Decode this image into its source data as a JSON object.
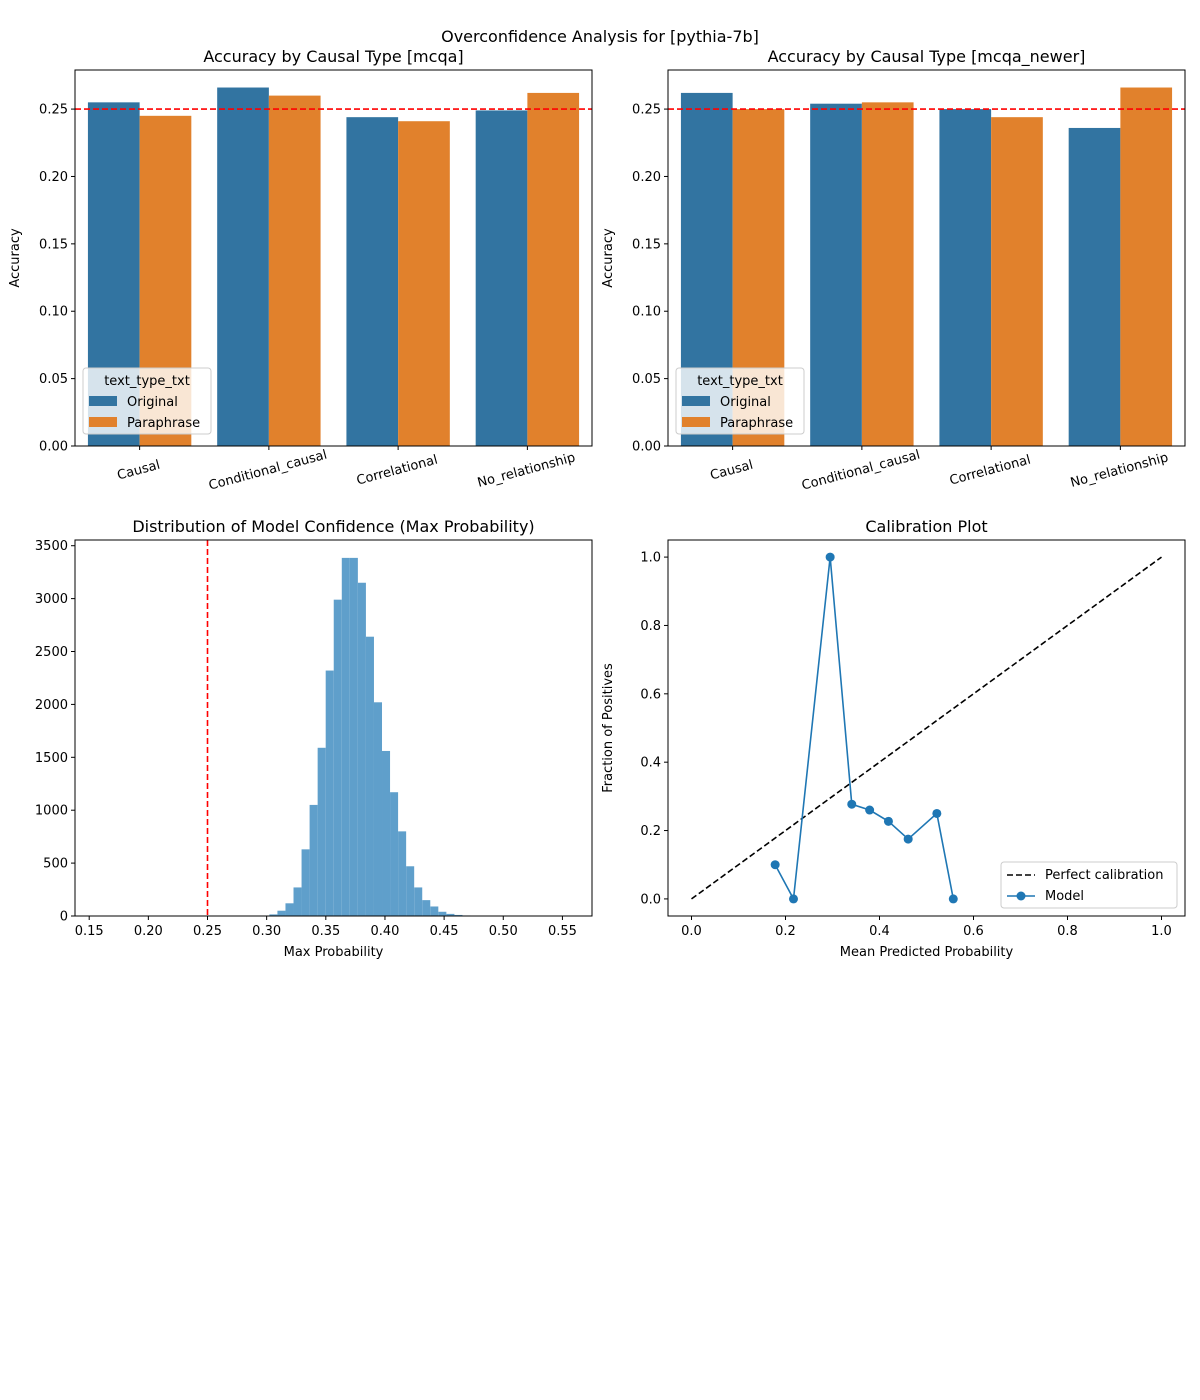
{
  "suptitle": "Overconfidence Analysis for [pythia-7b]",
  "colors": {
    "original": "#3274a1",
    "paraphrase": "#e1812c",
    "hist": "#5f9fcb",
    "ref_line": "#ff0000",
    "model_line": "#1f77b4",
    "perfect_line": "#000000"
  },
  "chart_data": [
    {
      "id": "mcqa",
      "type": "bar",
      "title": "Accuracy by Causal Type [mcqa]",
      "xlabel": "",
      "ylabel": "Accuracy",
      "categories": [
        "Causal",
        "Conditional_causal",
        "Correlational",
        "No_relationship"
      ],
      "series": [
        {
          "name": "Original",
          "values": [
            0.255,
            0.266,
            0.244,
            0.249
          ]
        },
        {
          "name": "Paraphrase",
          "values": [
            0.245,
            0.26,
            0.241,
            0.262
          ]
        }
      ],
      "ylim": [
        0,
        0.279
      ],
      "yticks": [
        "0.00",
        "0.05",
        "0.10",
        "0.15",
        "0.20",
        "0.25"
      ],
      "ref_line": 0.25,
      "legend_title": "text_type_txt",
      "legend_loc": "lower-left"
    },
    {
      "id": "mcqa_newer",
      "type": "bar",
      "title": "Accuracy by Causal Type [mcqa_newer]",
      "xlabel": "",
      "ylabel": "Accuracy",
      "categories": [
        "Causal",
        "Conditional_causal",
        "Correlational",
        "No_relationship"
      ],
      "series": [
        {
          "name": "Original",
          "values": [
            0.262,
            0.254,
            0.25,
            0.236
          ]
        },
        {
          "name": "Paraphrase",
          "values": [
            0.25,
            0.255,
            0.244,
            0.266
          ]
        }
      ],
      "ylim": [
        0,
        0.279
      ],
      "yticks": [
        "0.00",
        "0.05",
        "0.10",
        "0.15",
        "0.20",
        "0.25"
      ],
      "ref_line": 0.25,
      "legend_title": "text_type_txt",
      "legend_loc": "lower-left"
    },
    {
      "id": "confidence_hist",
      "type": "histogram",
      "title": "Distribution of Model Confidence (Max Probability)",
      "xlabel": "Max Probability",
      "ylabel": "",
      "bin_edges": [
        0.2955,
        0.3023,
        0.3091,
        0.3159,
        0.3227,
        0.3295,
        0.3363,
        0.3431,
        0.3499,
        0.3567,
        0.3635,
        0.3703,
        0.3771,
        0.3839,
        0.3907,
        0.3975,
        0.4043,
        0.4111,
        0.4179,
        0.4247,
        0.4315,
        0.4383,
        0.4451,
        0.4519,
        0.4587,
        0.4655,
        0.4723,
        0.4791,
        0.4859,
        0.4927
      ],
      "counts": [
        3,
        15,
        50,
        120,
        270,
        630,
        1050,
        1590,
        2320,
        2990,
        3385,
        3385,
        3150,
        2640,
        2020,
        1560,
        1170,
        800,
        470,
        270,
        150,
        90,
        40,
        20,
        10,
        5,
        2,
        1,
        0
      ],
      "xlim": [
        0.138,
        0.575
      ],
      "ylim": [
        0,
        3554
      ],
      "xticks": [
        "0.15",
        "0.20",
        "0.25",
        "0.30",
        "0.35",
        "0.40",
        "0.45",
        "0.50",
        "0.55"
      ],
      "yticks": [
        "0",
        "500",
        "1000",
        "1500",
        "2000",
        "2500",
        "3000",
        "3500"
      ],
      "ref_line": 0.25
    },
    {
      "id": "calibration",
      "type": "line",
      "title": "Calibration Plot",
      "xlabel": "Mean Predicted Probability",
      "ylabel": "Fraction of Positives",
      "x": [
        0.178,
        0.217,
        0.295,
        0.341,
        0.379,
        0.419,
        0.461,
        0.522,
        0.557
      ],
      "y": [
        0.1,
        0.0,
        1.0,
        0.277,
        0.26,
        0.227,
        0.175,
        0.25,
        0.0
      ],
      "perfect_line": [
        [
          0,
          0
        ],
        [
          1,
          1
        ]
      ],
      "xlim": [
        -0.05,
        1.05
      ],
      "ylim": [
        -0.05,
        1.05
      ],
      "xticks": [
        "0.0",
        "0.2",
        "0.4",
        "0.6",
        "0.8",
        "1.0"
      ],
      "yticks": [
        "0.0",
        "0.2",
        "0.4",
        "0.6",
        "0.8",
        "1.0"
      ],
      "legend": [
        "Perfect calibration",
        "Model"
      ],
      "legend_loc": "lower-right"
    }
  ]
}
